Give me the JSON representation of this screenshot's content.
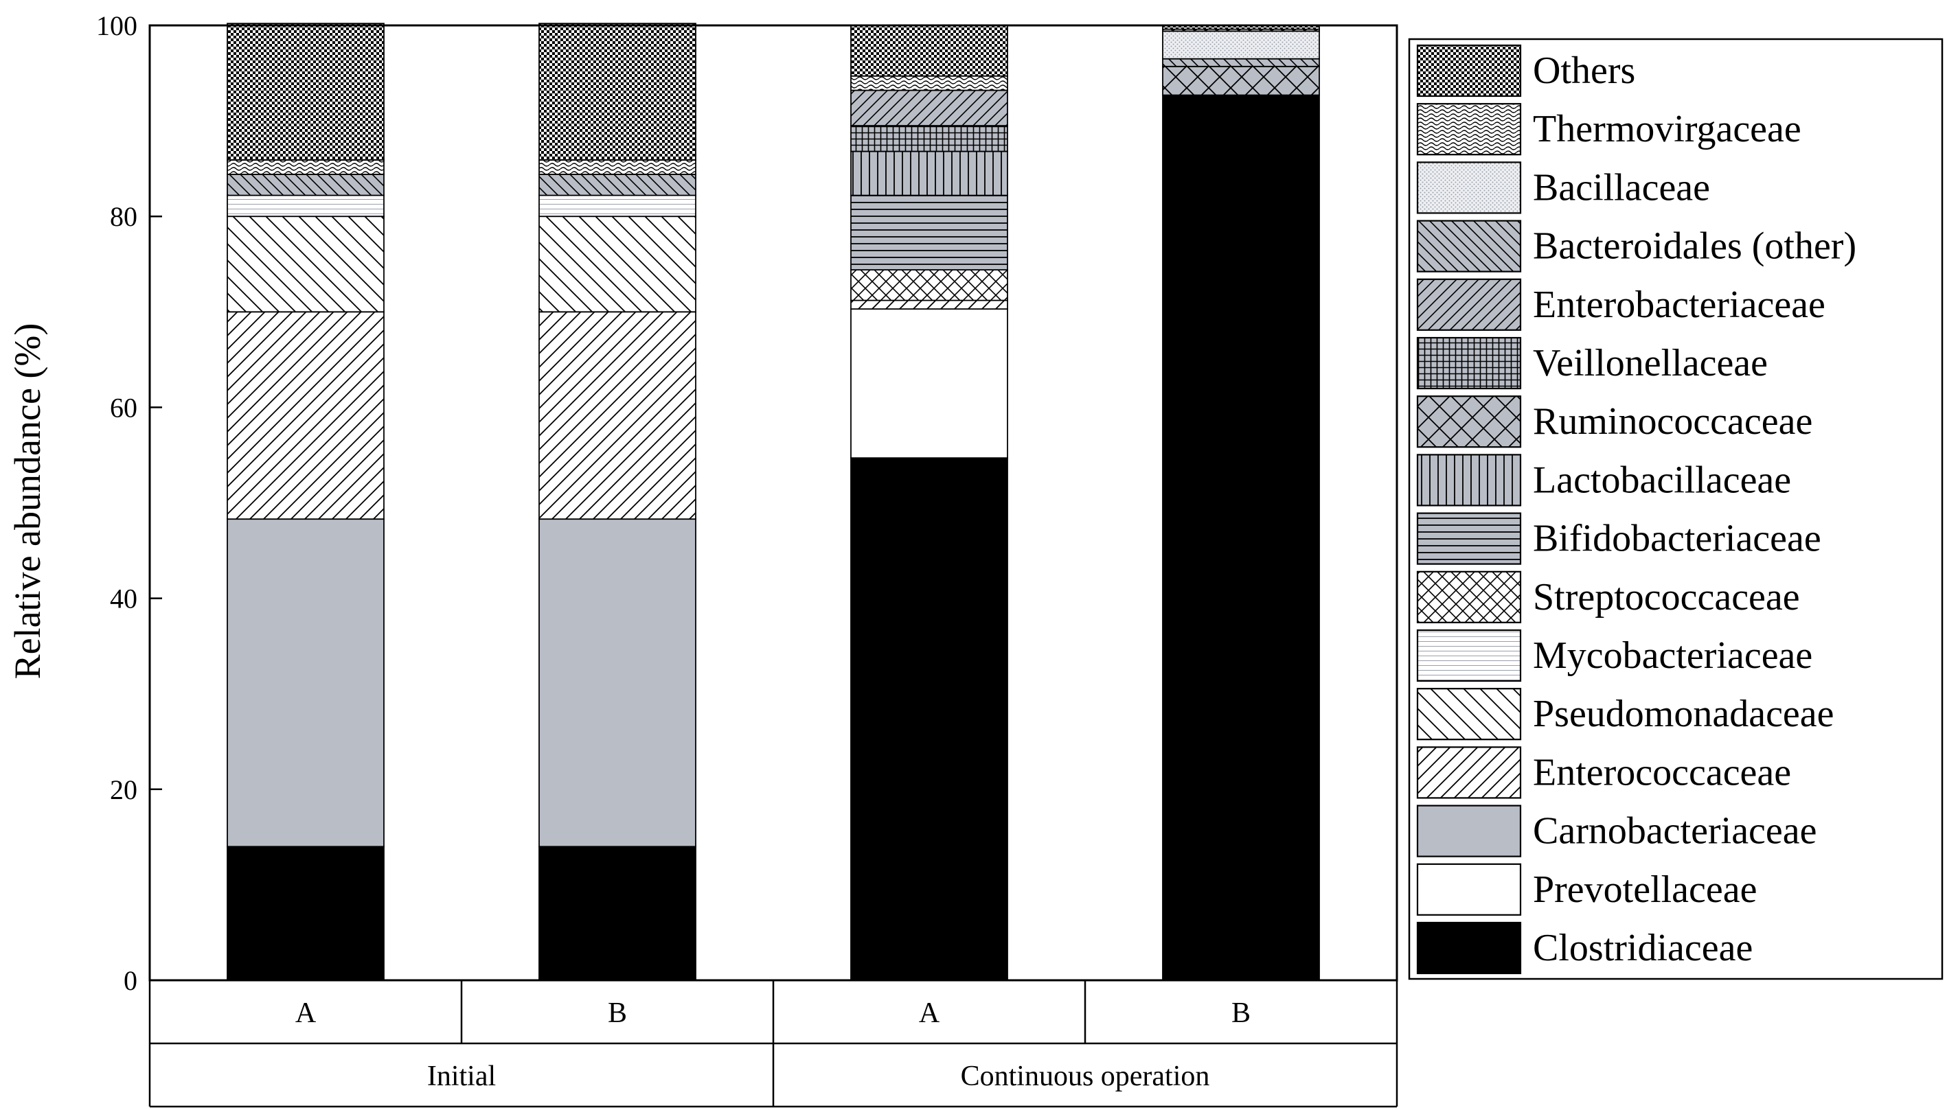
{
  "chart_data": {
    "type": "bar",
    "stacked": true,
    "ylabel": "Relative abundance (%)",
    "ylim": [
      0,
      100
    ],
    "yticks": [
      "0",
      "20",
      "40",
      "60",
      "80",
      "100"
    ],
    "groups": [
      {
        "label": "Initial",
        "categories": [
          "A",
          "B"
        ]
      },
      {
        "label": "Continuous operation",
        "categories": [
          "A",
          "B"
        ]
      }
    ],
    "categories": [
      "Initial A",
      "Initial B",
      "Continuous operation A",
      "Continuous operation B"
    ],
    "legend_position": "right",
    "grid": false,
    "series": [
      {
        "name": "Clostridiaceae",
        "pattern": "solid-black",
        "values": [
          14.0,
          14.0,
          54.7,
          92.7
        ]
      },
      {
        "name": "Prevotellaceae",
        "pattern": "white",
        "values": [
          0.0,
          0.0,
          15.6,
          0.0
        ]
      },
      {
        "name": "Carnobacteriaceae",
        "pattern": "solid-gray",
        "values": [
          34.3,
          34.3,
          0.0,
          0.0
        ]
      },
      {
        "name": "Enterococcaceae",
        "pattern": "diagonal-up",
        "values": [
          21.7,
          21.7,
          0.9,
          0.0
        ]
      },
      {
        "name": "Pseudomonadaceae",
        "pattern": "diagonal-down",
        "values": [
          10.0,
          10.0,
          0.0,
          0.0
        ]
      },
      {
        "name": "Mycobacteriaceae",
        "pattern": "horizontal-light",
        "values": [
          2.2,
          2.2,
          0.0,
          0.0
        ]
      },
      {
        "name": "Streptococcaceae",
        "pattern": "crosshatch-diagonal",
        "values": [
          0.0,
          0.0,
          3.2,
          0.0
        ]
      },
      {
        "name": "Bifidobacteriaceae",
        "pattern": "horizontal-gray",
        "values": [
          0.0,
          0.0,
          7.8,
          0.0
        ]
      },
      {
        "name": "Lactobacillaceae",
        "pattern": "vertical-gray",
        "values": [
          0.0,
          0.0,
          4.6,
          0.0
        ]
      },
      {
        "name": "Ruminococcaceae",
        "pattern": "crosshatch-gray",
        "values": [
          0.0,
          0.0,
          0.0,
          3.0
        ]
      },
      {
        "name": "Veillonellaceae",
        "pattern": "grid-gray",
        "values": [
          0.0,
          0.0,
          2.7,
          0.0
        ]
      },
      {
        "name": "Enterobacteriaceae",
        "pattern": "diagonal-up-gray",
        "values": [
          0.0,
          0.0,
          3.7,
          0.0
        ]
      },
      {
        "name": "Bacteroidales (other)",
        "pattern": "diagonal-down-gray",
        "values": [
          2.2,
          2.2,
          0.0,
          0.8
        ]
      },
      {
        "name": "Bacillaceae",
        "pattern": "dotted-light",
        "values": [
          0.0,
          0.0,
          0.0,
          2.9
        ]
      },
      {
        "name": "Thermovirgaceae",
        "pattern": "wavy",
        "values": [
          1.5,
          1.5,
          1.5,
          0.2
        ]
      },
      {
        "name": "Others",
        "pattern": "checker",
        "values": [
          14.3,
          14.3,
          5.3,
          0.4
        ]
      }
    ]
  }
}
